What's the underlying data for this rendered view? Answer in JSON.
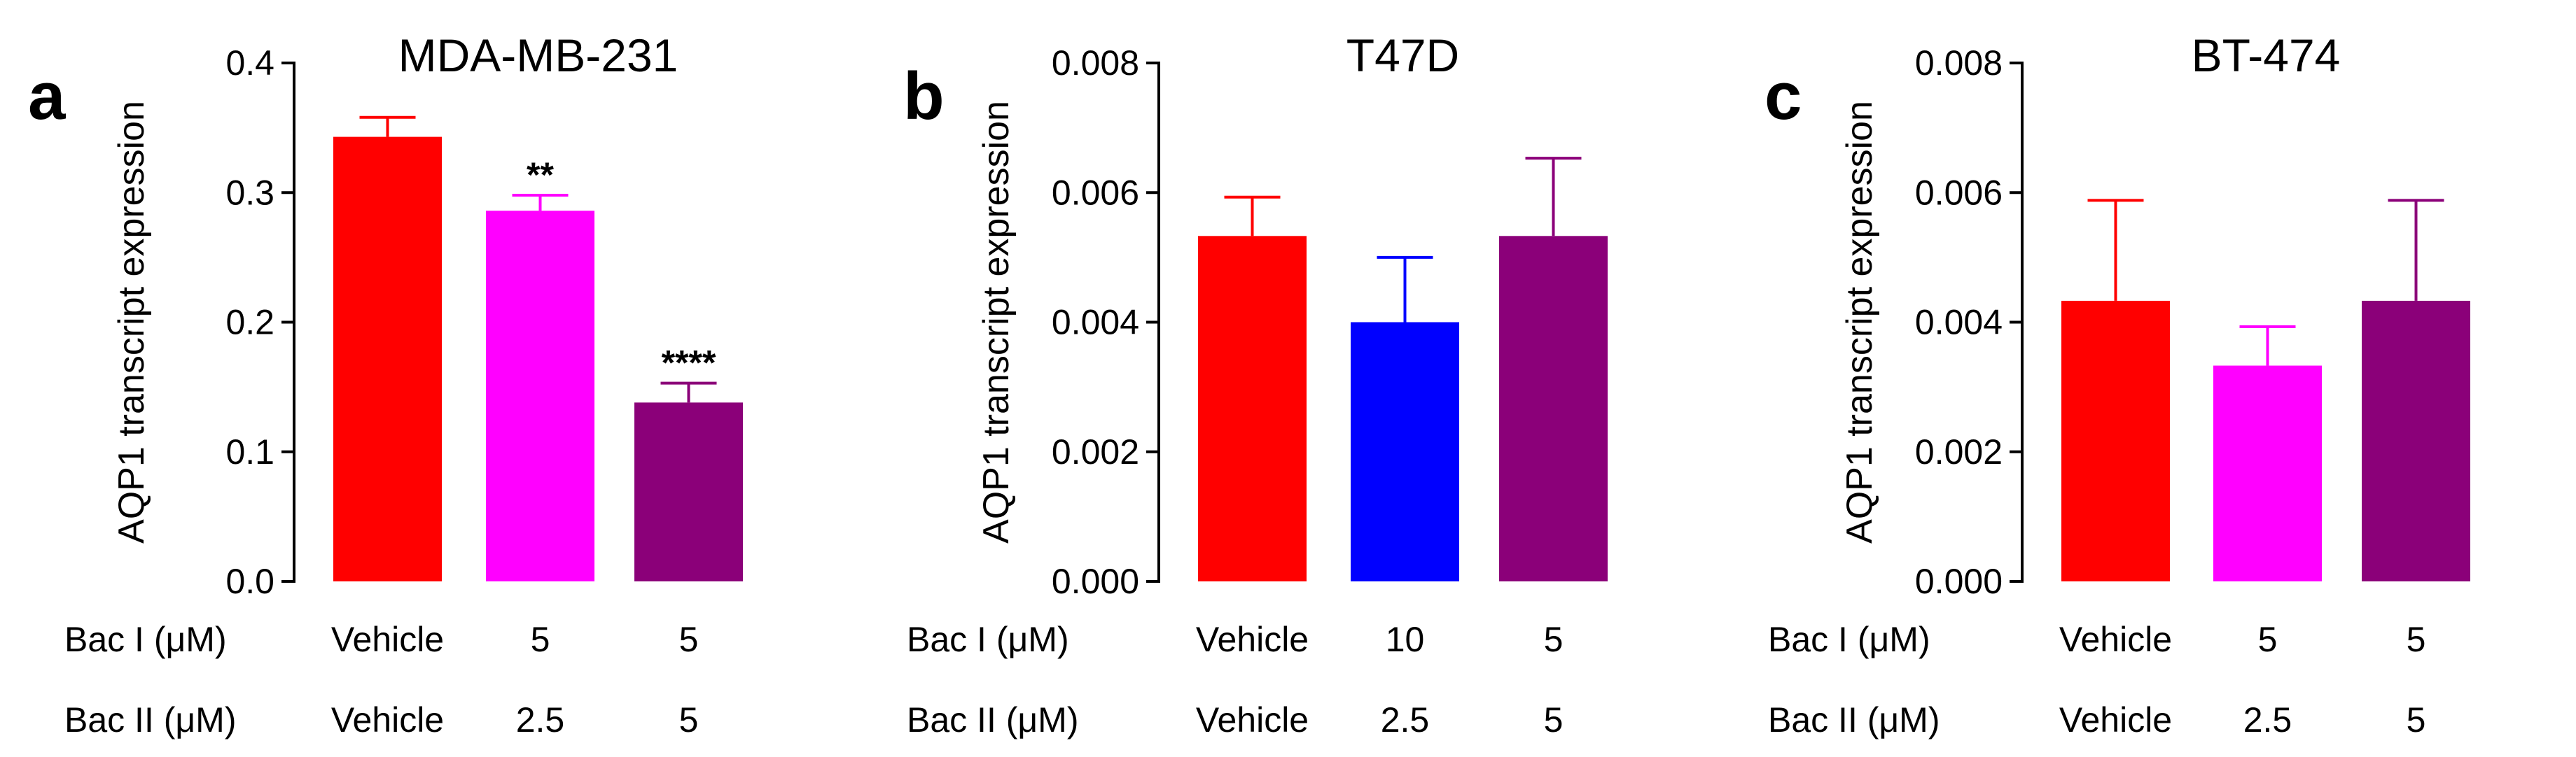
{
  "chart_data": [
    {
      "panel": "a",
      "type": "bar",
      "title": "MDA-MB-231",
      "ylabel": "AQP1 transcript expression",
      "xlabel": "",
      "ylim": [
        0,
        0.4
      ],
      "yticks": [
        "0.0",
        "0.1",
        "0.2",
        "0.3",
        "0.4"
      ],
      "values": [
        0.343,
        0.286,
        0.138
      ],
      "errors": [
        0.015,
        0.012,
        0.015
      ],
      "colors": [
        "#ff0000",
        "#ff00ff",
        "#8b0079"
      ],
      "significance": [
        "",
        "**",
        "****"
      ],
      "bac1_label": "Bac I (μM)",
      "bac1": [
        "Vehicle",
        "5",
        "5"
      ],
      "bac2_label": "Bac II (μM)",
      "bac2": [
        "Vehicle",
        "2.5",
        "5"
      ]
    },
    {
      "panel": "b",
      "type": "bar",
      "title": "T47D",
      "ylabel": "AQP1 transcript expression",
      "xlabel": "",
      "ylim": [
        0,
        0.008
      ],
      "yticks": [
        "0.000",
        "0.002",
        "0.004",
        "0.006",
        "0.008"
      ],
      "values": [
        0.00533,
        0.004,
        0.00533
      ],
      "errors": [
        0.0006,
        0.001,
        0.0012
      ],
      "colors": [
        "#ff0000",
        "#0000ff",
        "#8b0079"
      ],
      "significance": [
        "",
        "",
        ""
      ],
      "bac1_label": "Bac I (μM)",
      "bac1": [
        "Vehicle",
        "10",
        "5"
      ],
      "bac2_label": "Bac II (μM)",
      "bac2": [
        "Vehicle",
        "2.5",
        "5"
      ]
    },
    {
      "panel": "c",
      "type": "bar",
      "title": "BT-474",
      "ylabel": "AQP1 transcript expression",
      "xlabel": "",
      "ylim": [
        0,
        0.008
      ],
      "yticks": [
        "0.000",
        "0.002",
        "0.004",
        "0.006",
        "0.008"
      ],
      "values": [
        0.00433,
        0.00333,
        0.00433
      ],
      "errors": [
        0.00155,
        0.0006,
        0.00155
      ],
      "colors": [
        "#ff0000",
        "#ff00ff",
        "#8b0079"
      ],
      "significance": [
        "",
        "",
        ""
      ],
      "bac1_label": "Bac I (μM)",
      "bac1": [
        "Vehicle",
        "5",
        "5"
      ],
      "bac2_label": "Bac II (μM)",
      "bac2": [
        "Vehicle",
        "2.5",
        "5"
      ]
    }
  ]
}
